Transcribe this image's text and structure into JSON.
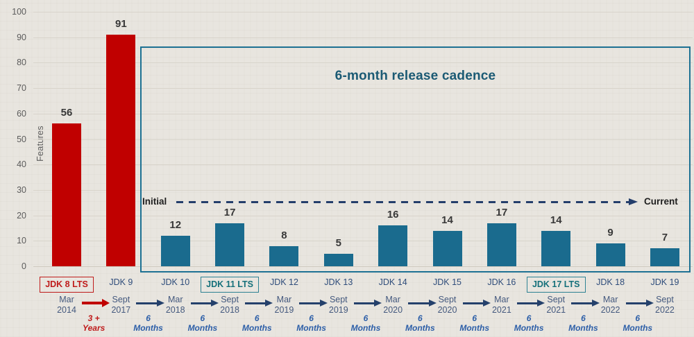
{
  "chart_data": {
    "type": "bar",
    "title": "6-month release cadence",
    "ylabel": "Features",
    "ylim": [
      0,
      100
    ],
    "ytick_step": 10,
    "yticks": [
      0,
      10,
      20,
      30,
      40,
      50,
      60,
      70,
      80,
      90,
      100
    ],
    "grid": "horizontal",
    "flow": {
      "initial": "Initial",
      "current": "Current"
    },
    "categories": [
      "JDK 8 LTS",
      "JDK 9",
      "JDK 10",
      "JDK 11 LTS",
      "JDK 12",
      "JDK 13",
      "JDK 14",
      "JDK 15",
      "JDK 16",
      "JDK 17 LTS",
      "JDK 18",
      "JDK 19"
    ],
    "values": [
      56,
      91,
      12,
      17,
      8,
      5,
      16,
      14,
      17,
      14,
      9,
      7
    ],
    "bars": [
      {
        "name": "JDK 8 LTS",
        "value": 56,
        "bar_color": "red",
        "lts": "red",
        "date_top": "Mar",
        "date_bottom": "2014"
      },
      {
        "name": "JDK 9",
        "value": 91,
        "bar_color": "red",
        "lts": null,
        "date_top": "Sept",
        "date_bottom": "2017"
      },
      {
        "name": "JDK 10",
        "value": 12,
        "bar_color": "teal",
        "lts": null,
        "date_top": "Mar",
        "date_bottom": "2018"
      },
      {
        "name": "JDK 11 LTS",
        "value": 17,
        "bar_color": "teal",
        "lts": "teal",
        "date_top": "Sept",
        "date_bottom": "2018"
      },
      {
        "name": "JDK 12",
        "value": 8,
        "bar_color": "teal",
        "lts": null,
        "date_top": "Mar",
        "date_bottom": "2019"
      },
      {
        "name": "JDK 13",
        "value": 5,
        "bar_color": "teal",
        "lts": null,
        "date_top": "Sept",
        "date_bottom": "2019"
      },
      {
        "name": "JDK 14",
        "value": 16,
        "bar_color": "teal",
        "lts": null,
        "date_top": "Mar",
        "date_bottom": "2020"
      },
      {
        "name": "JDK 15",
        "value": 14,
        "bar_color": "teal",
        "lts": null,
        "date_top": "Sept",
        "date_bottom": "2020"
      },
      {
        "name": "JDK 16",
        "value": 17,
        "bar_color": "teal",
        "lts": null,
        "date_top": "Mar",
        "date_bottom": "2021"
      },
      {
        "name": "JDK 17 LTS",
        "value": 14,
        "bar_color": "teal",
        "lts": "teal",
        "date_top": "Sept",
        "date_bottom": "2021"
      },
      {
        "name": "JDK 18",
        "value": 9,
        "bar_color": "teal",
        "lts": null,
        "date_top": "Mar",
        "date_bottom": "2022"
      },
      {
        "name": "JDK 19",
        "value": 7,
        "bar_color": "teal",
        "lts": null,
        "date_top": "Sept",
        "date_bottom": "2022"
      }
    ],
    "timeline_gaps": [
      {
        "top": "3 +",
        "bottom": "Years",
        "style": "red"
      },
      {
        "top": "6",
        "bottom": "Months",
        "style": "blue"
      },
      {
        "top": "6",
        "bottom": "Months",
        "style": "blue"
      },
      {
        "top": "6",
        "bottom": "Months",
        "style": "blue"
      },
      {
        "top": "6",
        "bottom": "Months",
        "style": "blue"
      },
      {
        "top": "6",
        "bottom": "Months",
        "style": "blue"
      },
      {
        "top": "6",
        "bottom": "Months",
        "style": "blue"
      },
      {
        "top": "6",
        "bottom": "Months",
        "style": "blue"
      },
      {
        "top": "6",
        "bottom": "Months",
        "style": "blue"
      },
      {
        "top": "6",
        "bottom": "Months",
        "style": "blue"
      },
      {
        "top": "6",
        "bottom": "Months",
        "style": "blue"
      }
    ]
  },
  "colors": {
    "background": "#e8e5df",
    "bar_red": "#c00000",
    "bar_teal": "#1a6b8e",
    "box_border": "#1d7193",
    "title_teal": "#1b5a74",
    "flow_navy": "#243e6b",
    "arrow_navy": "#24406b",
    "arrow_red": "#c00000",
    "gridline": "#d8d4cb"
  }
}
